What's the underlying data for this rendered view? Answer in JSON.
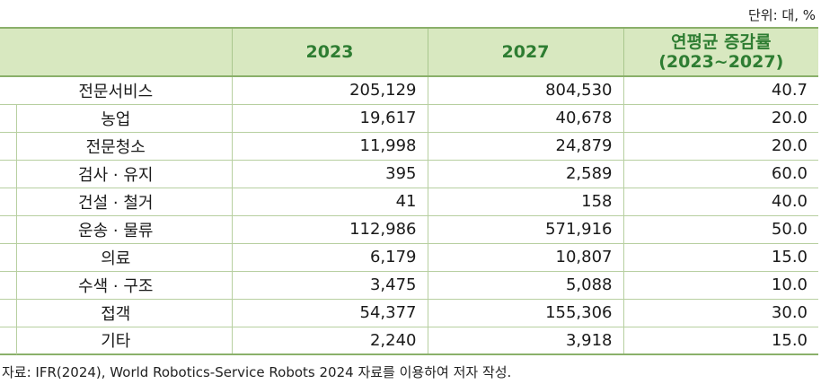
{
  "unit_note": "단위: 대, %",
  "headers": {
    "col0": "",
    "col1": "2023",
    "col2": "2027",
    "col3_line1": "연평균 증감률",
    "col3_line2": "(2023~2027)"
  },
  "rows": [
    {
      "label": "전문서비스",
      "v2023": "205,129",
      "v2027": "804,530",
      "rate": "40.7"
    },
    {
      "label": "농업",
      "v2023": "19,617",
      "v2027": "40,678",
      "rate": "20.0"
    },
    {
      "label": "전문청소",
      "v2023": "11,998",
      "v2027": "24,879",
      "rate": "20.0"
    },
    {
      "label": "검사 · 유지",
      "v2023": "395",
      "v2027": "2,589",
      "rate": "60.0"
    },
    {
      "label": "건설 · 철거",
      "v2023": "41",
      "v2027": "158",
      "rate": "40.0"
    },
    {
      "label": "운송 · 물류",
      "v2023": "112,986",
      "v2027": "571,916",
      "rate": "50.0"
    },
    {
      "label": "의료",
      "v2023": "6,179",
      "v2027": "10,807",
      "rate": "15.0"
    },
    {
      "label": "수색 · 구조",
      "v2023": "3,475",
      "v2027": "5,088",
      "rate": "10.0"
    },
    {
      "label": "접객",
      "v2023": "54,377",
      "v2027": "155,306",
      "rate": "30.0"
    },
    {
      "label": "기타",
      "v2023": "2,240",
      "v2027": "3,918",
      "rate": "15.0"
    }
  ],
  "source_note": "자료: IFR(2024), World Robotics-Service Robots 2024 자료를 이용하여 저자 작성."
}
